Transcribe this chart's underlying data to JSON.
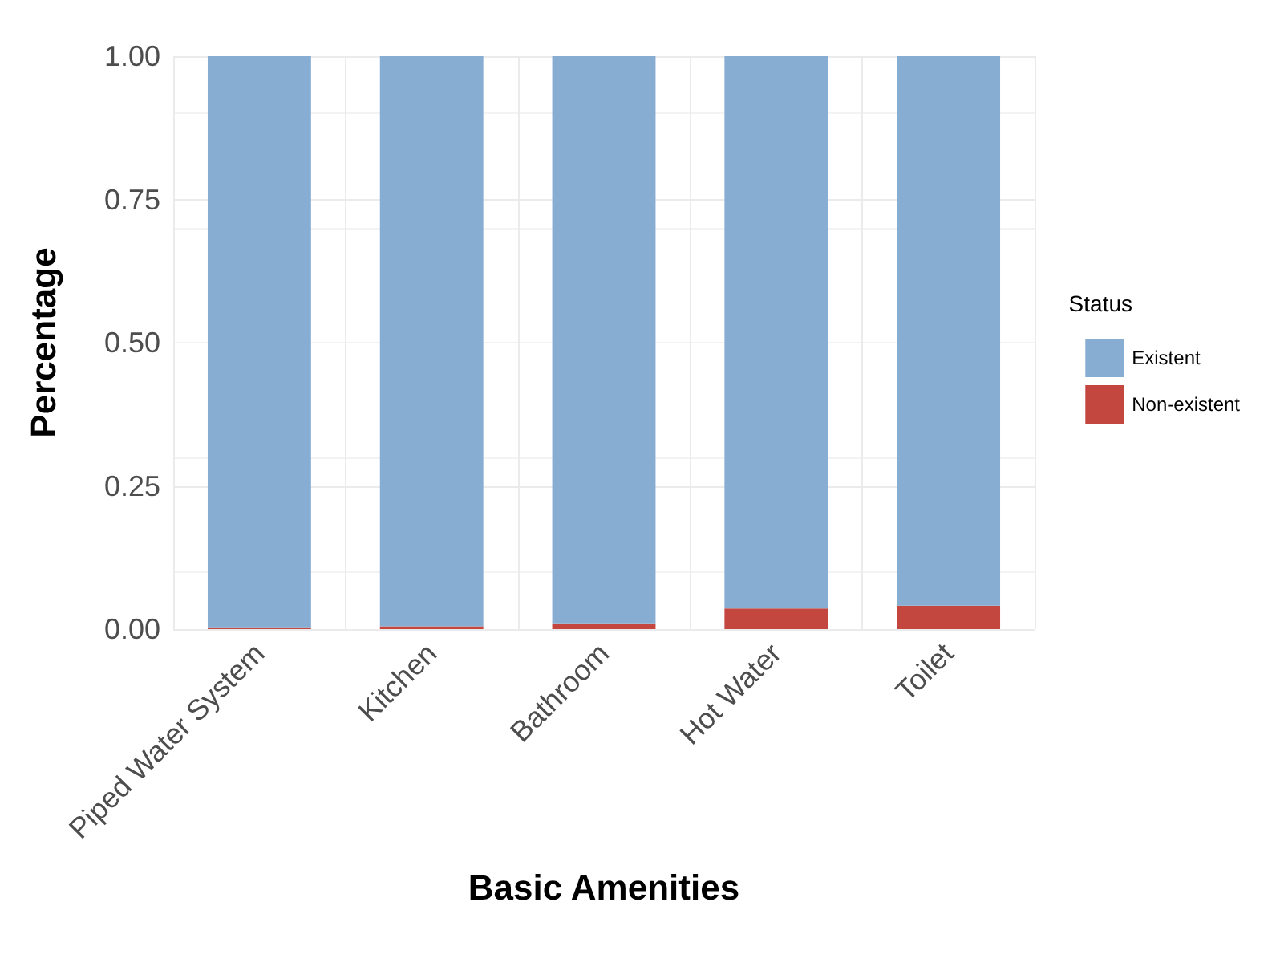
{
  "chart_data": {
    "type": "bar",
    "stacked": true,
    "xlabel": "Basic Amenities",
    "ylabel": "Percentage",
    "legend_title": "Status",
    "legend": "right",
    "categories": [
      "Piped Water System",
      "Kitchen",
      "Bathroom",
      "Hot Water",
      "Toilet"
    ],
    "series": [
      {
        "name": "Non-existent",
        "color": "#c4473f",
        "values": [
          0.003,
          0.005,
          0.01,
          0.036,
          0.041
        ]
      },
      {
        "name": "Existent",
        "color": "#87aed2",
        "values": [
          0.997,
          0.995,
          0.99,
          0.964,
          0.959
        ]
      }
    ],
    "ylim": [
      0,
      1
    ],
    "yticks": [
      {
        "value": 0,
        "label": "0.00"
      },
      {
        "value": 0.25,
        "label": "0.25"
      },
      {
        "value": 0.5,
        "label": "0.50"
      },
      {
        "value": 0.75,
        "label": "0.75"
      },
      {
        "value": 1,
        "label": "1.00"
      }
    ],
    "grid": true
  }
}
